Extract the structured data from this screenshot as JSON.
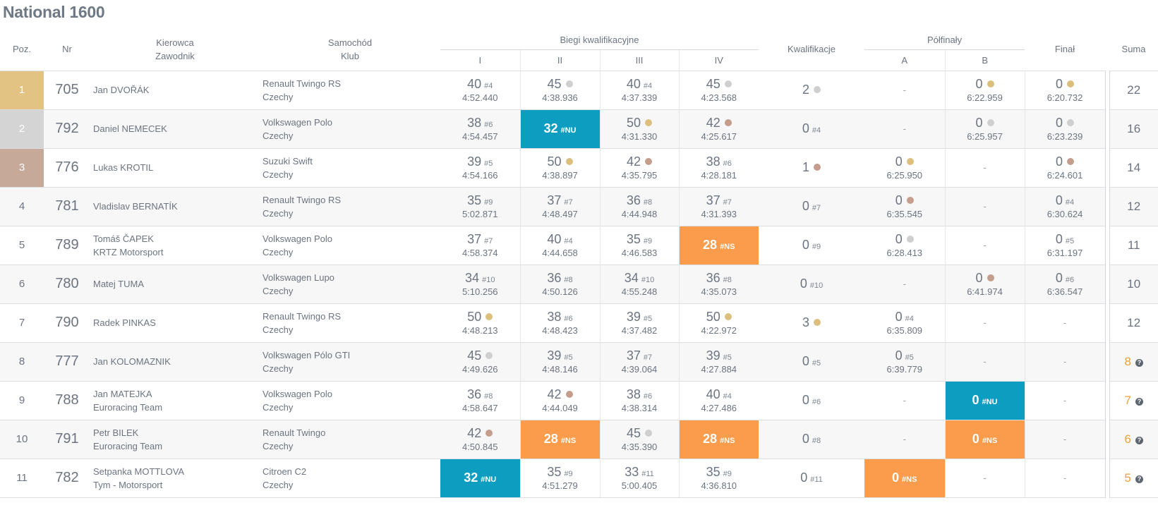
{
  "title": "National 1600",
  "headers": {
    "pos": "Poz.",
    "nr": "Nr",
    "driver_1": "Kierowca",
    "driver_2": "Zawodnik",
    "car_1": "Samochód",
    "car_2": "Klub",
    "heats_group": "Biegi kwalifikacyjne",
    "heats": [
      "I",
      "II",
      "III",
      "IV"
    ],
    "qual": "Kwalifikacje",
    "semi_group": "Półfinały",
    "semis": [
      "A",
      "B"
    ],
    "final": "Finał",
    "sum": "Suma"
  },
  "help_glyph": "?",
  "rows": [
    {
      "pos": "1",
      "nr": "705",
      "driver": "Jan DVOŘÁK",
      "team": "",
      "car": "Renault Twingo RS",
      "country": "Czechy",
      "heats": [
        {
          "pts": "40",
          "tag": "#4",
          "time": "4:52.440"
        },
        {
          "pts": "45",
          "medal": "silver",
          "time": "4:38.936"
        },
        {
          "pts": "40",
          "tag": "#4",
          "time": "4:37.339"
        },
        {
          "pts": "45",
          "medal": "silver",
          "time": "4:23.568"
        }
      ],
      "qual": {
        "pts": "2",
        "medal": "silver"
      },
      "semis": [
        {
          "dash": "-"
        },
        {
          "pts": "0",
          "medal": "gold",
          "time": "6:22.959"
        }
      ],
      "final": {
        "pts": "0",
        "medal": "gold",
        "time": "6:20.732"
      },
      "sum": "22"
    },
    {
      "pos": "2",
      "nr": "792",
      "driver": "Daniel NEMECEK",
      "team": "",
      "car": "Volkswagen Polo",
      "country": "Czechy",
      "heats": [
        {
          "pts": "38",
          "tag": "#6",
          "time": "4:54.457"
        },
        {
          "pts": "32",
          "tag": "#NU",
          "status": "nu"
        },
        {
          "pts": "50",
          "medal": "gold",
          "time": "4:31.330"
        },
        {
          "pts": "42",
          "medal": "bronze",
          "time": "4:25.617"
        }
      ],
      "qual": {
        "pts": "0",
        "tag": "#4"
      },
      "semis": [
        {
          "dash": "-"
        },
        {
          "pts": "0",
          "medal": "silver",
          "time": "6:25.957"
        }
      ],
      "final": {
        "pts": "0",
        "medal": "silver",
        "time": "6:23.239"
      },
      "sum": "16"
    },
    {
      "pos": "3",
      "nr": "776",
      "driver": "Lukas KROTIL",
      "team": "",
      "car": "Suzuki Swift",
      "country": "Czechy",
      "heats": [
        {
          "pts": "39",
          "tag": "#5",
          "time": "4:54.166"
        },
        {
          "pts": "50",
          "medal": "gold",
          "time": "4:38.897"
        },
        {
          "pts": "42",
          "medal": "bronze",
          "time": "4:35.795"
        },
        {
          "pts": "38",
          "tag": "#6",
          "time": "4:28.181"
        }
      ],
      "qual": {
        "pts": "1",
        "medal": "bronze"
      },
      "semis": [
        {
          "pts": "0",
          "medal": "gold",
          "time": "6:25.950"
        },
        {
          "dash": "-"
        }
      ],
      "final": {
        "pts": "0",
        "medal": "bronze",
        "time": "6:24.601"
      },
      "sum": "14"
    },
    {
      "pos": "4",
      "nr": "781",
      "driver": "Vladislav BERNATÍK",
      "team": "",
      "car": "Renault Twingo RS",
      "country": "Czechy",
      "heats": [
        {
          "pts": "35",
          "tag": "#9",
          "time": "5:02.871"
        },
        {
          "pts": "37",
          "tag": "#7",
          "time": "4:48.497"
        },
        {
          "pts": "36",
          "tag": "#8",
          "time": "4:44.948"
        },
        {
          "pts": "37",
          "tag": "#7",
          "time": "4:31.393"
        }
      ],
      "qual": {
        "pts": "0",
        "tag": "#7"
      },
      "semis": [
        {
          "pts": "0",
          "medal": "bronze",
          "time": "6:35.545"
        },
        {
          "dash": "-"
        }
      ],
      "final": {
        "pts": "0",
        "tag": "#4",
        "time": "6:30.624"
      },
      "sum": "12"
    },
    {
      "pos": "5",
      "nr": "789",
      "driver": "Tomáš ČAPEK",
      "team": "KRTZ Motorsport",
      "car": "Volkswagen Polo",
      "country": "Czechy",
      "heats": [
        {
          "pts": "37",
          "tag": "#7",
          "time": "4:58.374"
        },
        {
          "pts": "40",
          "tag": "#4",
          "time": "4:44.658"
        },
        {
          "pts": "35",
          "tag": "#9",
          "time": "4:46.583"
        },
        {
          "pts": "28",
          "tag": "#NS",
          "status": "ns"
        }
      ],
      "qual": {
        "pts": "0",
        "tag": "#9"
      },
      "semis": [
        {
          "pts": "0",
          "medal": "silver",
          "time": "6:28.413"
        },
        {
          "dash": "-"
        }
      ],
      "final": {
        "pts": "0",
        "tag": "#5",
        "time": "6:31.197"
      },
      "sum": "11"
    },
    {
      "pos": "6",
      "nr": "780",
      "driver": "Matej TUMA",
      "team": "",
      "car": "Volkswagen Lupo",
      "country": "Czechy",
      "heats": [
        {
          "pts": "34",
          "tag": "#10",
          "time": "5:10.256"
        },
        {
          "pts": "36",
          "tag": "#8",
          "time": "4:50.126"
        },
        {
          "pts": "34",
          "tag": "#10",
          "time": "4:55.248"
        },
        {
          "pts": "36",
          "tag": "#8",
          "time": "4:35.073"
        }
      ],
      "qual": {
        "pts": "0",
        "tag": "#10"
      },
      "semis": [
        {
          "dash": "-"
        },
        {
          "pts": "0",
          "medal": "bronze",
          "time": "6:41.974"
        }
      ],
      "final": {
        "pts": "0",
        "tag": "#6",
        "time": "6:36.547"
      },
      "sum": "10"
    },
    {
      "pos": "7",
      "nr": "790",
      "driver": "Radek PINKAS",
      "team": "",
      "car": "Renault Twingo RS",
      "country": "Czechy",
      "heats": [
        {
          "pts": "50",
          "medal": "gold",
          "time": "4:48.213"
        },
        {
          "pts": "38",
          "tag": "#6",
          "time": "4:48.423"
        },
        {
          "pts": "39",
          "tag": "#5",
          "time": "4:37.482"
        },
        {
          "pts": "50",
          "medal": "gold",
          "time": "4:22.972"
        }
      ],
      "qual": {
        "pts": "3",
        "medal": "gold"
      },
      "semis": [
        {
          "pts": "0",
          "tag": "#4",
          "time": "6:35.809"
        },
        {
          "dash": "-"
        }
      ],
      "final": {
        "dash": "-"
      },
      "sum": "12"
    },
    {
      "pos": "8",
      "nr": "777",
      "driver": "Jan KOLOMAZNIK",
      "team": "",
      "car": "Volkswagen Pólo GTI",
      "country": "Czechy",
      "heats": [
        {
          "pts": "45",
          "medal": "silver",
          "time": "4:49.626"
        },
        {
          "pts": "39",
          "tag": "#5",
          "time": "4:48.146"
        },
        {
          "pts": "37",
          "tag": "#7",
          "time": "4:39.064"
        },
        {
          "pts": "39",
          "tag": "#5",
          "time": "4:27.884"
        }
      ],
      "qual": {
        "pts": "0",
        "tag": "#5"
      },
      "semis": [
        {
          "pts": "0",
          "tag": "#5",
          "time": "6:39.779"
        },
        {
          "dash": "-"
        }
      ],
      "final": {
        "dash": "-"
      },
      "sum": "8",
      "warn": true
    },
    {
      "pos": "9",
      "nr": "788",
      "driver": "Jan MATEJKA",
      "team": "Euroracing Team",
      "car": "Volkswagen Polo",
      "country": "Czechy",
      "heats": [
        {
          "pts": "36",
          "tag": "#8",
          "time": "4:58.647"
        },
        {
          "pts": "42",
          "medal": "bronze",
          "time": "4:44.049"
        },
        {
          "pts": "38",
          "tag": "#6",
          "time": "4:38.314"
        },
        {
          "pts": "40",
          "tag": "#4",
          "time": "4:27.486"
        }
      ],
      "qual": {
        "pts": "0",
        "tag": "#6"
      },
      "semis": [
        {
          "dash": "-"
        },
        {
          "pts": "0",
          "tag": "#NU",
          "status": "nu"
        }
      ],
      "final": {
        "dash": "-"
      },
      "sum": "7",
      "warn": true
    },
    {
      "pos": "10",
      "nr": "791",
      "driver": "Petr BILEK",
      "team": "Euroracing Team",
      "car": "Renault Twingo",
      "country": "Czechy",
      "heats": [
        {
          "pts": "42",
          "medal": "bronze",
          "time": "4:50.845"
        },
        {
          "pts": "28",
          "tag": "#NS",
          "status": "ns"
        },
        {
          "pts": "45",
          "medal": "silver",
          "time": "4:35.390"
        },
        {
          "pts": "28",
          "tag": "#NS",
          "status": "ns"
        }
      ],
      "qual": {
        "pts": "0",
        "tag": "#8"
      },
      "semis": [
        {
          "dash": "-"
        },
        {
          "pts": "0",
          "tag": "#NS",
          "status": "ns"
        }
      ],
      "final": {
        "dash": "-"
      },
      "sum": "6",
      "warn": true
    },
    {
      "pos": "11",
      "nr": "782",
      "driver": "Setpanka MOTTLOVA",
      "team": "Tym - Motorsport",
      "car": "Citroen C2",
      "country": "Czechy",
      "heats": [
        {
          "pts": "32",
          "tag": "#NU",
          "status": "nu"
        },
        {
          "pts": "35",
          "tag": "#9",
          "time": "4:51.279"
        },
        {
          "pts": "33",
          "tag": "#11",
          "time": "5:00.405"
        },
        {
          "pts": "35",
          "tag": "#9",
          "time": "4:36.810"
        }
      ],
      "qual": {
        "pts": "0",
        "tag": "#11"
      },
      "semis": [
        {
          "pts": "0",
          "tag": "#NS",
          "status": "ns"
        },
        {
          "dash": "-"
        }
      ],
      "final": {
        "dash": "-"
      },
      "sum": "5",
      "warn": true
    }
  ]
}
